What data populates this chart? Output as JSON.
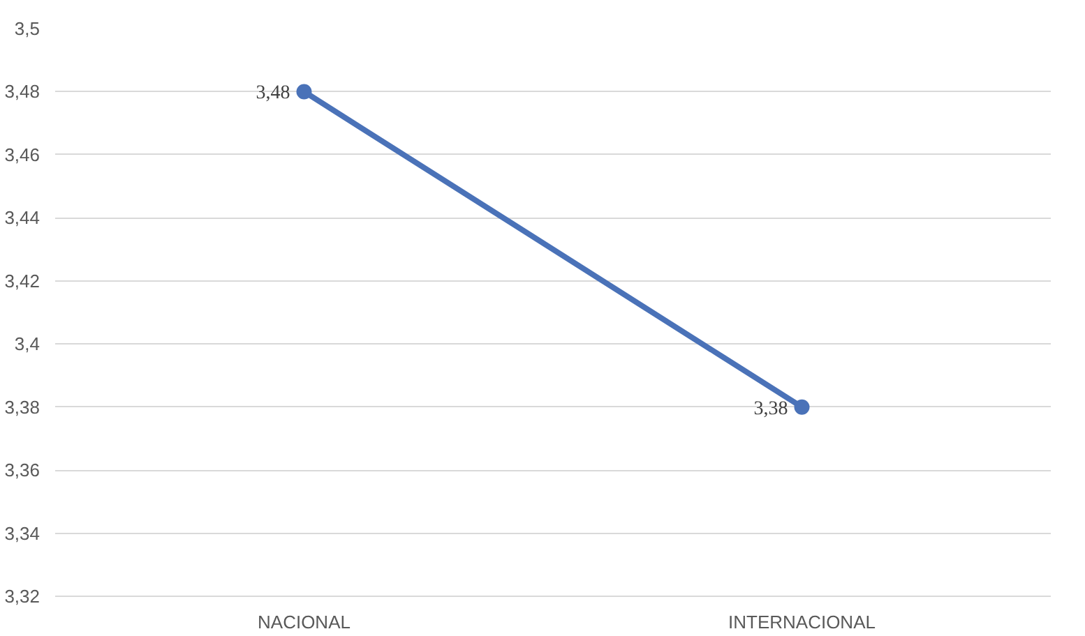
{
  "chart_data": {
    "type": "line",
    "categories": [
      "NACIONAL",
      "INTERNACIONAL"
    ],
    "series": [
      {
        "color": "#4a72b8",
        "values": [
          3.48,
          3.38
        ],
        "value_labels": [
          "3,48",
          "3,38"
        ]
      }
    ],
    "ylim": [
      3.32,
      3.5
    ],
    "yticks": [
      {
        "value": 3.32,
        "label": "3,32"
      },
      {
        "value": 3.34,
        "label": "3,34"
      },
      {
        "value": 3.36,
        "label": "3,36"
      },
      {
        "value": 3.38,
        "label": "3,38"
      },
      {
        "value": 3.4,
        "label": "3,4"
      },
      {
        "value": 3.42,
        "label": "3,42"
      },
      {
        "value": 3.44,
        "label": "3,44"
      },
      {
        "value": 3.46,
        "label": "3,46"
      },
      {
        "value": 3.48,
        "label": "3,48"
      },
      {
        "value": 3.5,
        "label": "3,5"
      }
    ],
    "grid": "y",
    "marker": "circle",
    "line_style": "solid"
  }
}
